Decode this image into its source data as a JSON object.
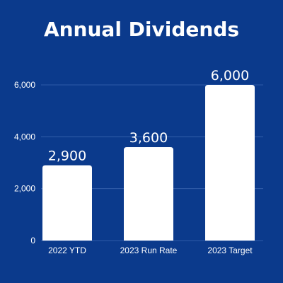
{
  "colors": {
    "background": "#0b3a8c",
    "bar": "#ffffff",
    "text": "#ffffff",
    "grid": "#3a64b0"
  },
  "chart_data": {
    "type": "bar",
    "title": "Annual Dividends",
    "xlabel": "",
    "ylabel": "",
    "categories": [
      "2022 YTD",
      "2023 Run Rate",
      "2023 Target"
    ],
    "values": [
      2900,
      3600,
      6000
    ],
    "value_labels": [
      "2,900",
      "3,600",
      "6,000"
    ],
    "yticks": [
      0,
      2000,
      4000,
      6000
    ],
    "ytick_labels": [
      "0",
      "2,000",
      "4,000",
      "6,000"
    ],
    "ylim": [
      0,
      6000
    ],
    "grid": true,
    "legend": "none"
  }
}
